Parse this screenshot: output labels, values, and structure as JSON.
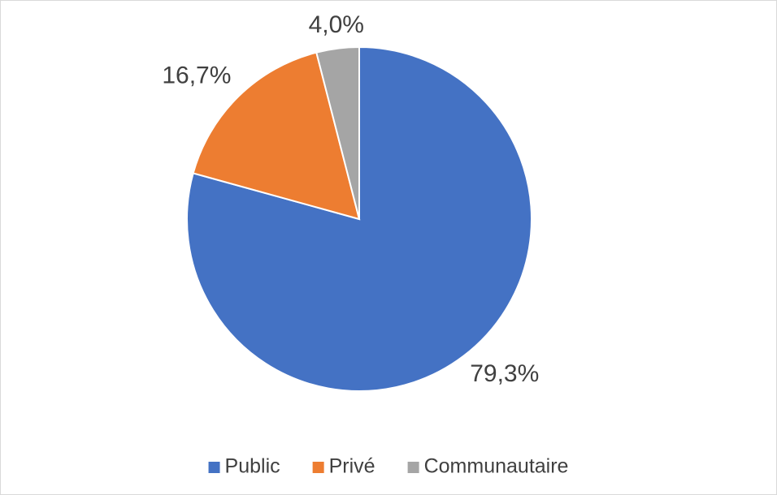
{
  "chart_data": {
    "type": "pie",
    "categories": [
      "Public",
      "Privé",
      "Communautaire"
    ],
    "values": [
      79.3,
      16.7,
      4.0
    ],
    "value_labels": [
      "79,3%",
      "16,7%",
      "4,0%"
    ],
    "colors": [
      "#4472c4",
      "#ed7d31",
      "#a5a5a5"
    ],
    "legend": "bottom"
  }
}
